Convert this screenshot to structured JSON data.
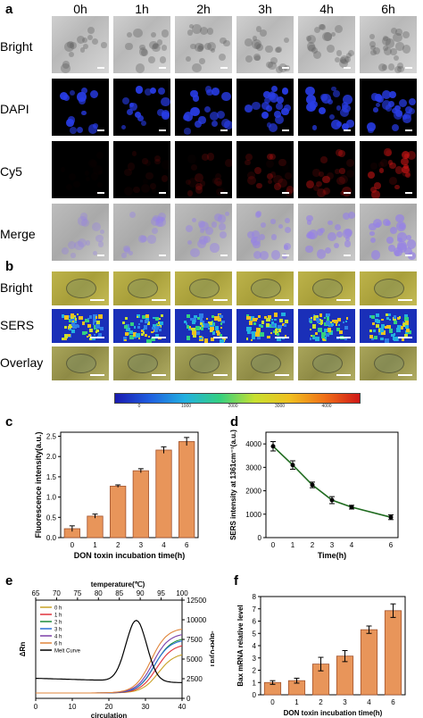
{
  "panel_a": {
    "letter": "a",
    "time_labels": [
      "0h",
      "1h",
      "2h",
      "3h",
      "4h",
      "6h"
    ],
    "row_labels": [
      "Bright",
      "DAPI",
      "Cy5",
      "Merge"
    ]
  },
  "panel_b": {
    "letter": "b",
    "row_labels": [
      "Bright",
      "SERS",
      "Overlay"
    ],
    "colorbar_ticks": [
      "0",
      "1000",
      "2000",
      "3000",
      "4000"
    ]
  },
  "chart_data": [
    {
      "panel": "c",
      "type": "bar",
      "categories": [
        "0",
        "1",
        "2",
        "3",
        "4",
        "6"
      ],
      "values": [
        0.22,
        0.53,
        1.27,
        1.65,
        2.16,
        2.37
      ],
      "errors": [
        0.07,
        0.05,
        0.03,
        0.05,
        0.08,
        0.1
      ],
      "xlabel": "DON toxin incubation time(h)",
      "ylabel": "Fluorescence intensity(a.u.)",
      "ylim": [
        0,
        2.6
      ],
      "yticks": [
        "0.0",
        "0.5",
        "1.0",
        "1.5",
        "2.0",
        "2.5"
      ],
      "bar_color": "#e8955a"
    },
    {
      "panel": "d",
      "type": "line",
      "x": [
        0,
        1,
        2,
        3,
        4,
        6
      ],
      "xticks": [
        "0",
        "1",
        "2",
        "3",
        "4",
        "6"
      ],
      "values": [
        3900,
        3100,
        2250,
        1600,
        1300,
        870
      ],
      "errors": [
        200,
        180,
        120,
        150,
        80,
        100
      ],
      "xlabel": "Time(h)",
      "ylabel": "SERS intensity at 1361cm⁻¹(a.u.)",
      "ylim": [
        0,
        4500
      ],
      "yticks": [
        "0",
        "1000",
        "2000",
        "3000",
        "4000"
      ],
      "line_color": "#1f6b1f"
    },
    {
      "panel": "e",
      "type": "line",
      "x_bottom_label": "circulation",
      "x_top_label": "temperature(℃)",
      "y_left_label": "ΔRn",
      "y_right_label": "-d(RFU)/dT",
      "x_bottom_ticks": [
        "0",
        "10",
        "20",
        "30",
        "40"
      ],
      "x_top_ticks": [
        "65",
        "70",
        "75",
        "80",
        "85",
        "90",
        "95",
        "100"
      ],
      "y_right_ticks": [
        "0",
        "2500",
        "5000",
        "7500",
        "10000",
        "12500"
      ],
      "series": [
        {
          "name": "0 h",
          "color": "#c9a227"
        },
        {
          "name": "1 h",
          "color": "#e0323a"
        },
        {
          "name": "2 h",
          "color": "#1c8c3a"
        },
        {
          "name": "3 h",
          "color": "#2a6fd6"
        },
        {
          "name": "4 h",
          "color": "#7a3fa8"
        },
        {
          "name": "6 h",
          "color": "#e0853a"
        },
        {
          "name": "Melt Curve",
          "color": "#000000"
        }
      ]
    },
    {
      "panel": "f",
      "type": "bar",
      "categories": [
        "0",
        "1",
        "2",
        "3",
        "4",
        "6"
      ],
      "values": [
        1.0,
        1.15,
        2.5,
        3.15,
        5.3,
        6.85
      ],
      "errors": [
        0.15,
        0.2,
        0.55,
        0.45,
        0.3,
        0.55
      ],
      "xlabel": "DON toxin incubation time(h)",
      "ylabel": "Bax mRNA relative level",
      "ylim": [
        0,
        8
      ],
      "yticks": [
        "0",
        "1",
        "2",
        "3",
        "4",
        "5",
        "6",
        "7",
        "8"
      ],
      "bar_color": "#e8955a"
    }
  ],
  "panel_letters": {
    "c": "c",
    "d": "d",
    "e": "e",
    "f": "f"
  }
}
